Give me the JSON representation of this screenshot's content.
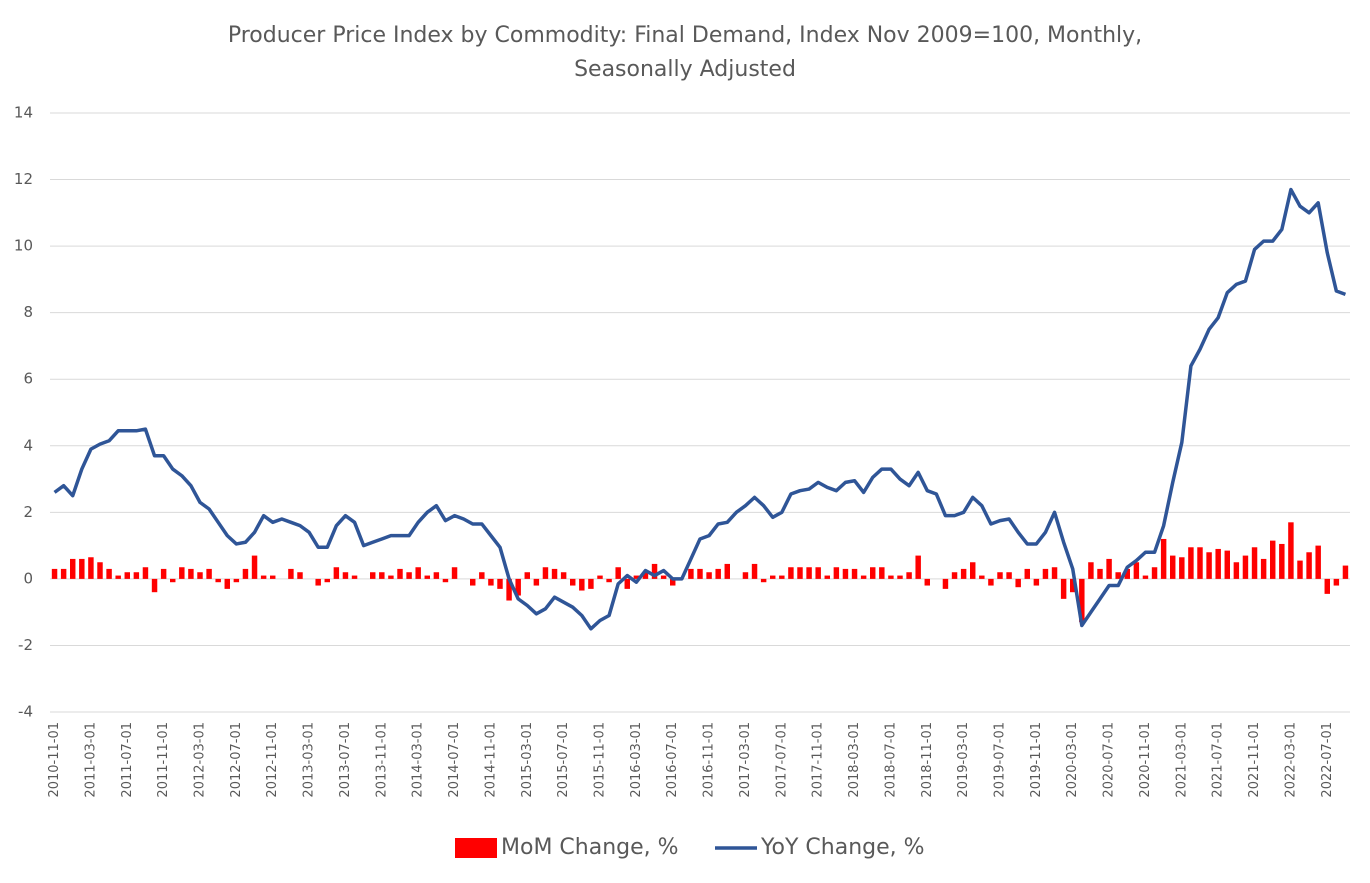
{
  "chart_data": {
    "type": "bar",
    "title": "Producer Price Index by Commodity: Final Demand, Index Nov 2009=100, Monthly,",
    "subtitle": "Seasonally Adjusted",
    "categories": [
      "2010-11-01",
      null,
      null,
      null,
      "2011-03-01",
      null,
      null,
      null,
      "2011-07-01",
      null,
      null,
      null,
      "2011-11-01",
      null,
      null,
      null,
      "2012-03-01",
      null,
      null,
      null,
      "2012-07-01",
      null,
      null,
      null,
      "2012-11-01",
      null,
      null,
      null,
      "2013-03-01",
      null,
      null,
      null,
      "2013-07-01",
      null,
      null,
      null,
      "2013-11-01",
      null,
      null,
      null,
      "2014-03-01",
      null,
      null,
      null,
      "2014-07-01",
      null,
      null,
      null,
      "2014-11-01",
      null,
      null,
      null,
      "2015-03-01",
      null,
      null,
      null,
      "2015-07-01",
      null,
      null,
      null,
      "2015-11-01",
      null,
      null,
      null,
      "2016-03-01",
      null,
      null,
      null,
      "2016-07-01",
      null,
      null,
      null,
      "2016-11-01",
      null,
      null,
      null,
      "2017-03-01",
      null,
      null,
      null,
      "2017-07-01",
      null,
      null,
      null,
      "2017-11-01",
      null,
      null,
      null,
      "2018-03-01",
      null,
      null,
      null,
      "2018-07-01",
      null,
      null,
      null,
      "2018-11-01",
      null,
      null,
      null,
      "2019-03-01",
      null,
      null,
      null,
      "2019-07-01",
      null,
      null,
      null,
      "2019-11-01",
      null,
      null,
      null,
      "2020-03-01",
      null,
      null,
      null,
      "2020-07-01",
      null,
      null,
      null,
      "2020-11-01",
      null,
      null,
      null,
      "2021-03-01",
      null,
      null,
      null,
      "2021-07-01",
      null,
      null,
      null,
      "2021-11-01",
      null,
      null,
      null,
      "2022-03-01",
      null,
      null,
      null,
      "2022-07-01",
      null,
      null
    ],
    "series": [
      {
        "name": "MoM Change, %",
        "type": "bar",
        "color": "#ff0000",
        "values": [
          0.3,
          0.3,
          0.6,
          0.6,
          0.65,
          0.5,
          0.3,
          0.1,
          0.2,
          0.2,
          0.35,
          -0.4,
          0.3,
          -0.1,
          0.35,
          0.3,
          0.2,
          0.3,
          -0.1,
          -0.3,
          -0.1,
          0.3,
          0.7,
          0.1,
          0.1,
          0,
          0.3,
          0.2,
          0,
          -0.2,
          -0.1,
          0.35,
          0.2,
          0.1,
          0,
          0.2,
          0.2,
          0.1,
          0.3,
          0.2,
          0.35,
          0.1,
          0.2,
          -0.1,
          0.35,
          0,
          -0.2,
          0.2,
          -0.2,
          -0.3,
          -0.65,
          -0.5,
          0.2,
          -0.2,
          0.35,
          0.3,
          0.2,
          -0.2,
          -0.35,
          -0.3,
          0.1,
          -0.1,
          0.35,
          -0.3,
          0.1,
          0.2,
          0.45,
          0.1,
          -0.2,
          0,
          0.3,
          0.3,
          0.2,
          0.3,
          0.45,
          0,
          0.2,
          0.45,
          -0.1,
          0.1,
          0.1,
          0.35,
          0.35,
          0.35,
          0.35,
          0.1,
          0.35,
          0.3,
          0.3,
          0.1,
          0.35,
          0.35,
          0.1,
          0.1,
          0.2,
          0.7,
          -0.2,
          0,
          -0.3,
          0.2,
          0.3,
          0.5,
          0.1,
          -0.2,
          0.2,
          0.2,
          -0.25,
          0.3,
          -0.2,
          0.3,
          0.35,
          -0.6,
          -0.4,
          -1.3,
          0.5,
          0.3,
          0.6,
          0.2,
          0.3,
          0.5,
          0.1,
          0.35,
          1.2,
          0.7,
          0.65,
          0.95,
          0.95,
          0.8,
          0.9,
          0.85,
          0.5,
          0.7,
          0.95,
          0.6,
          1.15,
          1.05,
          1.7,
          0.55,
          0.8,
          1.0,
          -0.45,
          -0.2,
          0.4
        ]
      },
      {
        "name": "YoY Change, %",
        "type": "line",
        "color": "#2f5597",
        "values": [
          2.6,
          2.8,
          2.5,
          3.3,
          3.9,
          4.05,
          4.15,
          4.45,
          4.45,
          4.45,
          4.5,
          3.7,
          3.7,
          3.3,
          3.1,
          2.8,
          2.3,
          2.1,
          1.7,
          1.3,
          1.05,
          1.1,
          1.4,
          1.9,
          1.7,
          1.8,
          1.7,
          1.6,
          1.4,
          0.95,
          0.95,
          1.6,
          1.9,
          1.7,
          1.0,
          1.1,
          1.2,
          1.3,
          1.3,
          1.3,
          1.7,
          2.0,
          2.2,
          1.75,
          1.9,
          1.8,
          1.65,
          1.65,
          1.3,
          0.95,
          0.0,
          -0.6,
          -0.8,
          -1.05,
          -0.9,
          -0.55,
          -0.7,
          -0.85,
          -1.1,
          -1.5,
          -1.25,
          -1.1,
          -0.15,
          0.1,
          -0.1,
          0.25,
          0.1,
          0.25,
          0.0,
          0.0,
          0.6,
          1.2,
          1.3,
          1.65,
          1.7,
          2.0,
          2.2,
          2.45,
          2.2,
          1.85,
          2.0,
          2.55,
          2.65,
          2.7,
          2.9,
          2.75,
          2.65,
          2.9,
          2.95,
          2.6,
          3.05,
          3.3,
          3.3,
          3.0,
          2.8,
          3.2,
          2.65,
          2.55,
          1.9,
          1.9,
          2.0,
          2.45,
          2.2,
          1.65,
          1.75,
          1.8,
          1.4,
          1.05,
          1.05,
          1.4,
          2.0,
          1.1,
          0.3,
          -1.4,
          -1.0,
          -0.6,
          -0.2,
          -0.2,
          0.35,
          0.55,
          0.8,
          0.8,
          1.6,
          2.9,
          4.1,
          6.4,
          6.9,
          7.5,
          7.85,
          8.6,
          8.85,
          8.95,
          9.9,
          10.15,
          10.15,
          10.5,
          11.7,
          11.2,
          11.0,
          11.3,
          9.8,
          8.65,
          8.55
        ]
      }
    ],
    "ylim": [
      -4,
      14
    ],
    "yticks": [
      -4,
      -2,
      0,
      2,
      4,
      6,
      8,
      10,
      12,
      14
    ],
    "grid": true,
    "legend": "bottom"
  }
}
